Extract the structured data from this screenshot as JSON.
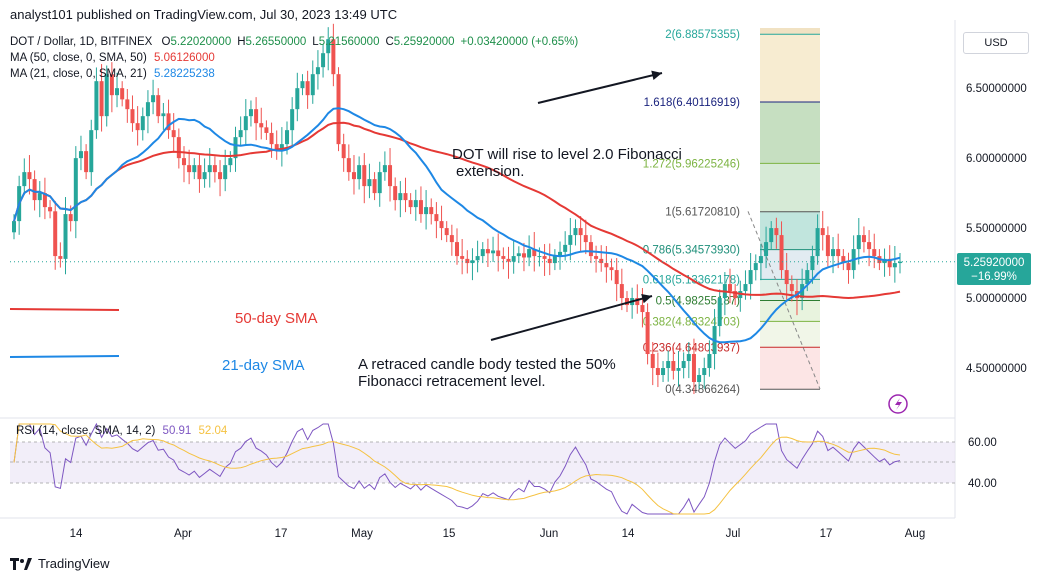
{
  "header": {
    "published": "analyst101 published on TradingView.com, Jul 30, 2023 13:49 UTC"
  },
  "legend": {
    "symbol": "DOT / Dollar, 1D, BITFINEX",
    "ohlc": [
      {
        "k": "O",
        "v": "5.22020000"
      },
      {
        "k": "H",
        "v": "5.26550000"
      },
      {
        "k": "L",
        "v": "5.21560000"
      },
      {
        "k": "C",
        "v": "5.25920000"
      },
      {
        "k": "",
        "v": "+0.03420000 (+0.65%)"
      }
    ],
    "ma50": {
      "label": "MA (50, close, 0, SMA, 50)",
      "value": "5.06126000",
      "color": "#e53935"
    },
    "ma21": {
      "label": "MA (21, close, 0, SMA, 21)",
      "value": "5.28225238",
      "color": "#1e88e5"
    }
  },
  "currency_button": "USD",
  "annotations": {
    "fib_ext": [
      "DOT will rise to level 2.0 Fibonacci",
      "extension."
    ],
    "retrace": [
      "A retraced candle body tested the 50%",
      "Fibonacci retracement level."
    ],
    "sma50": "50-day SMA",
    "sma21": "21-day SMA"
  },
  "price_badge": {
    "price": "5.25920000",
    "change": "−16.99%"
  },
  "rsi_legend": {
    "label": "RSI (14, close, SMA, 14, 2)",
    "rsi": "50.91",
    "sma": "52.04"
  },
  "footer": {
    "brand": "TradingView"
  },
  "colors": {
    "up": "#26a69a",
    "down": "#ef5350",
    "ma50": "#e53935",
    "ma21": "#1e88e5",
    "rsi": "#7e57c2",
    "rsi_ma": "#f5c242"
  },
  "chart_data": {
    "type": "candlestick",
    "y_ticks": [
      "6.50000000",
      "6.00000000",
      "5.50000000",
      "5.00000000",
      "4.50000000"
    ],
    "ylim": [
      4.2,
      6.93
    ],
    "x_ticks": [
      "14",
      "Apr",
      "17",
      "May",
      "15",
      "Jun",
      "14",
      "Jul",
      "17",
      "Aug"
    ],
    "rsi_ticks": [
      "60.00",
      "40.00"
    ],
    "fib_levels": [
      {
        "label": "2(6.88575355)",
        "value": 6.88575355,
        "color": "#26a69a"
      },
      {
        "label": "1.618(6.40116919)",
        "value": 6.40116919,
        "color": "#1a237e"
      },
      {
        "label": "1.272(5.96225246)",
        "value": 5.96225246,
        "color": "#7cb342"
      },
      {
        "label": "1(5.61720810)",
        "value": 5.6172081,
        "color": "#555555"
      },
      {
        "label": "0.786(5.34573930)",
        "value": 5.3457393,
        "color": "#1e8f7a"
      },
      {
        "label": "0.618(5.13362178)",
        "value": 5.13362178,
        "color": "#26a69a"
      },
      {
        "label": "0.5(4.98255187)",
        "value": 4.98255187,
        "color": "#2e7d32"
      },
      {
        "label": "0.382(4.83324703)",
        "value": 4.83324703,
        "color": "#7cb342"
      },
      {
        "label": "0.236(4.64803937)",
        "value": 4.64803937,
        "color": "#c62828"
      },
      {
        "label": "0(4.34866264)",
        "value": 4.34866264,
        "color": "#555555"
      }
    ],
    "close": [
      5.55,
      5.8,
      5.9,
      5.85,
      5.7,
      5.75,
      5.65,
      5.62,
      5.3,
      5.28,
      5.6,
      5.55,
      6.0,
      6.05,
      5.9,
      6.2,
      6.55,
      6.3,
      6.6,
      6.45,
      6.5,
      6.42,
      6.35,
      6.25,
      6.2,
      6.3,
      6.4,
      6.45,
      6.3,
      6.32,
      6.2,
      6.15,
      6.0,
      5.95,
      5.9,
      5.95,
      5.85,
      5.9,
      5.95,
      5.9,
      5.85,
      5.95,
      6.0,
      6.15,
      6.2,
      6.3,
      6.35,
      6.25,
      6.22,
      6.18,
      6.1,
      6.05,
      6.1,
      6.2,
      6.35,
      6.5,
      6.55,
      6.45,
      6.6,
      6.65,
      6.75,
      6.85,
      6.6,
      6.1,
      6.0,
      5.9,
      5.85,
      5.95,
      5.8,
      5.85,
      5.75,
      5.9,
      5.95,
      5.8,
      5.7,
      5.75,
      5.7,
      5.65,
      5.7,
      5.6,
      5.65,
      5.6,
      5.55,
      5.5,
      5.45,
      5.4,
      5.3,
      5.28,
      5.25,
      5.27,
      5.3,
      5.35,
      5.32,
      5.34,
      5.3,
      5.28,
      5.26,
      5.3,
      5.32,
      5.29,
      5.35,
      5.3,
      5.3,
      5.28,
      5.25,
      5.3,
      5.33,
      5.38,
      5.45,
      5.5,
      5.45,
      5.4,
      5.3,
      5.28,
      5.25,
      5.22,
      5.2,
      5.1,
      5.0,
      4.95,
      5.0,
      4.95,
      4.9,
      4.6,
      4.5,
      4.45,
      4.5,
      4.55,
      4.48,
      4.5,
      4.55,
      4.6,
      4.4,
      4.45,
      4.5,
      4.6,
      4.8,
      5.0,
      5.1,
      5.05,
      5.0,
      5.05,
      5.1,
      5.2,
      5.25,
      5.3,
      5.4,
      5.5,
      5.45,
      5.2,
      5.1,
      5.05,
      5.0,
      5.1,
      5.2,
      5.3,
      5.5,
      5.45,
      5.3,
      5.35,
      5.3,
      5.25,
      5.2,
      5.35,
      5.45,
      5.4,
      5.35,
      5.3,
      5.25,
      5.28,
      5.22,
      5.25,
      5.26
    ]
  }
}
